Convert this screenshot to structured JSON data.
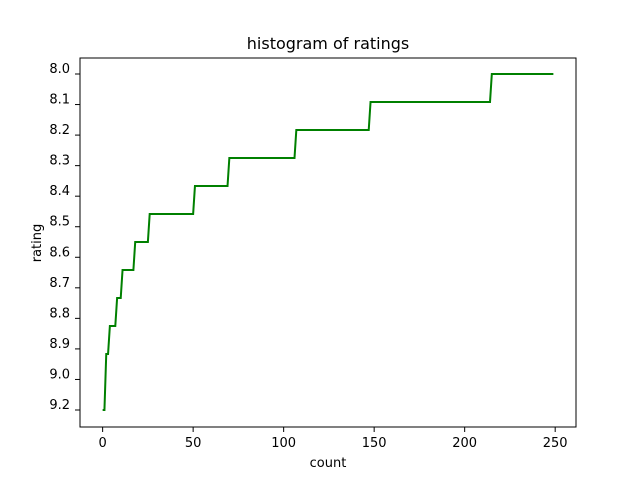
{
  "chart_data": {
    "type": "line",
    "title": "histogram of ratings",
    "xlabel": "count",
    "ylabel": "rating",
    "xlim": [
      -12.5,
      261.5
    ],
    "ylim": [
      8.0,
      9.2
    ],
    "y_inverted": true,
    "x_ticks": [
      "0",
      "50",
      "100",
      "150",
      "200",
      "250"
    ],
    "y_ticks": [
      "8.0",
      "8.1",
      "8.2",
      "8.3",
      "8.4",
      "8.5",
      "8.6",
      "8.7",
      "8.8",
      "8.9",
      "9.0",
      "9.2"
    ],
    "grid": false,
    "line_color": "#008000",
    "step_points": [
      {
        "x": 0,
        "y": 9.2
      },
      {
        "x": 1,
        "y": 9.2
      },
      {
        "x": 2,
        "y": 9.0
      },
      {
        "x": 3,
        "y": 9.0
      },
      {
        "x": 4,
        "y": 8.9
      },
      {
        "x": 7,
        "y": 8.9
      },
      {
        "x": 8,
        "y": 8.8
      },
      {
        "x": 10,
        "y": 8.8
      },
      {
        "x": 11,
        "y": 8.7
      },
      {
        "x": 17,
        "y": 8.7
      },
      {
        "x": 18,
        "y": 8.6
      },
      {
        "x": 25,
        "y": 8.6
      },
      {
        "x": 26,
        "y": 8.5
      },
      {
        "x": 50,
        "y": 8.5
      },
      {
        "x": 51,
        "y": 8.4
      },
      {
        "x": 69,
        "y": 8.4
      },
      {
        "x": 70,
        "y": 8.3
      },
      {
        "x": 106,
        "y": 8.3
      },
      {
        "x": 107,
        "y": 8.2
      },
      {
        "x": 147,
        "y": 8.2
      },
      {
        "x": 148,
        "y": 8.1
      },
      {
        "x": 214,
        "y": 8.1
      },
      {
        "x": 215,
        "y": 8.0
      },
      {
        "x": 249,
        "y": 8.0
      }
    ]
  }
}
